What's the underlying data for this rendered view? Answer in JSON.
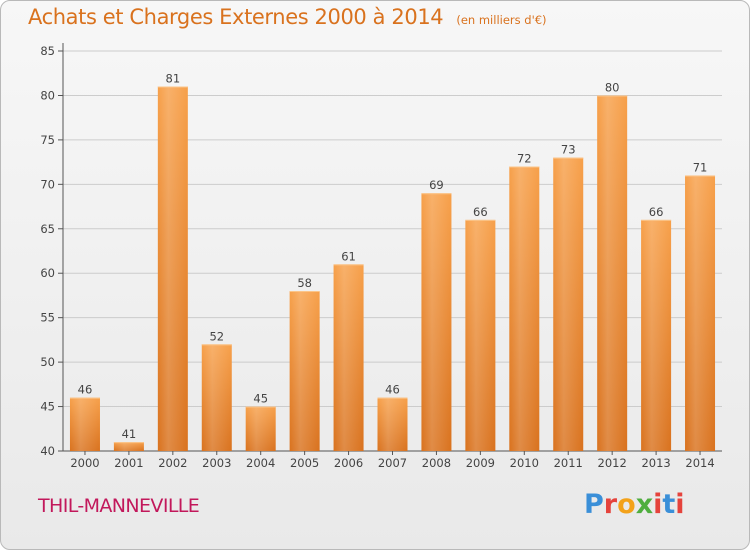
{
  "header": {
    "title": "Achats et Charges Externes 2000 à 2014",
    "subtitle": "(en milliers d'€)"
  },
  "footer": {
    "place": "THIL-MANNEVILLE"
  },
  "logo": {
    "letters": [
      "P",
      "r",
      "o",
      "x",
      "i",
      "t",
      "i"
    ],
    "colors": [
      "#3a8fd8",
      "#e5433c",
      "#f3a21a",
      "#4fae3f",
      "#e5433c",
      "#3a8fd8",
      "#e5433c"
    ]
  },
  "colors": {
    "bar_top": "#f7a04a",
    "bar_bottom": "#d9721e",
    "axis": "#555555",
    "grid": "#cccccc"
  },
  "chart_data": {
    "type": "bar",
    "title": "Achats et Charges Externes 2000 à 2014",
    "subtitle": "(en milliers d'€)",
    "categories": [
      "2000",
      "2001",
      "2002",
      "2003",
      "2004",
      "2005",
      "2006",
      "2007",
      "2008",
      "2009",
      "2010",
      "2011",
      "2012",
      "2013",
      "2014"
    ],
    "values": [
      46,
      41,
      81,
      52,
      45,
      58,
      61,
      46,
      69,
      66,
      72,
      73,
      80,
      66,
      71
    ],
    "ylim": [
      40,
      85
    ],
    "yticks": [
      40,
      45,
      50,
      55,
      60,
      65,
      70,
      75,
      80,
      85
    ],
    "grid": true,
    "legend": "none"
  }
}
